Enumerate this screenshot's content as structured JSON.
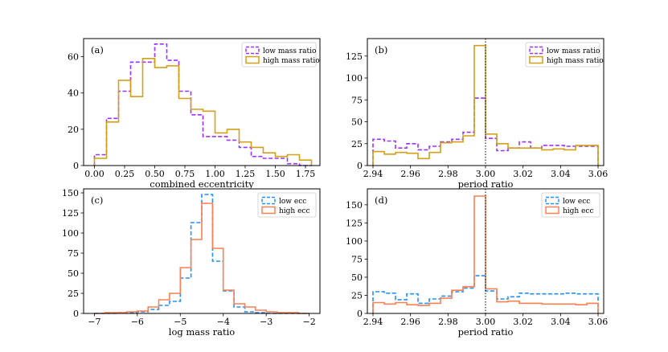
{
  "chart_data": [
    {
      "type": "histogram",
      "panel_label": "(a)",
      "xlabel": "combined eccentricity",
      "ylabel": "",
      "xlim": [
        -0.09,
        1.87
      ],
      "ylim": [
        0,
        70
      ],
      "xticks": [
        0.0,
        0.25,
        0.5,
        0.75,
        1.0,
        1.25,
        1.5,
        1.75
      ],
      "xtick_labels": [
        "0.00",
        "0.25",
        "0.50",
        "0.75",
        "1.00",
        "1.25",
        "1.50",
        "1.75"
      ],
      "yticks": [
        0,
        20,
        40,
        60
      ],
      "ytick_labels": [
        "0",
        "20",
        "40",
        "60"
      ],
      "legend_position": "top-right",
      "bin_edges": [
        0.0,
        0.1,
        0.2,
        0.3,
        0.4,
        0.5,
        0.6,
        0.7,
        0.8,
        0.9,
        1.0,
        1.1,
        1.2,
        1.3,
        1.4,
        1.5,
        1.6,
        1.7,
        1.8
      ],
      "vline": null,
      "series": [
        {
          "name": "low mass ratio",
          "color": "#9b30ff",
          "dashed": true,
          "values": [
            6,
            26,
            41,
            57,
            57,
            67,
            58,
            41,
            28,
            16,
            16,
            14,
            10,
            5,
            4,
            4,
            1,
            0
          ]
        },
        {
          "name": "high mass ratio",
          "color": "#d4a017",
          "dashed": false,
          "values": [
            4,
            24,
            47,
            38,
            59,
            54,
            55,
            37,
            31,
            30,
            18,
            20,
            13,
            10,
            7,
            5,
            6,
            3
          ]
        }
      ]
    },
    {
      "type": "histogram",
      "panel_label": "(b)",
      "xlabel": "period ratio",
      "ylabel": "",
      "xlim": [
        2.937,
        3.063
      ],
      "ylim": [
        0,
        145
      ],
      "xticks": [
        2.94,
        2.96,
        2.98,
        3.0,
        3.02,
        3.04,
        3.06
      ],
      "xtick_labels": [
        "2.94",
        "2.96",
        "2.98",
        "3.00",
        "3.02",
        "3.04",
        "3.06"
      ],
      "yticks": [
        0,
        25,
        50,
        75,
        100,
        125
      ],
      "ytick_labels": [
        "0",
        "25",
        "50",
        "75",
        "100",
        "125"
      ],
      "legend_position": "top-right",
      "bin_edges": [
        2.94,
        2.946,
        2.952,
        2.958,
        2.964,
        2.97,
        2.976,
        2.982,
        2.988,
        2.994,
        3.0,
        3.006,
        3.012,
        3.018,
        3.024,
        3.03,
        3.036,
        3.042,
        3.048,
        3.054,
        3.06
      ],
      "vline": 3.0,
      "series": [
        {
          "name": "low mass ratio",
          "color": "#9b30ff",
          "dashed": true,
          "values": [
            30,
            28,
            20,
            25,
            18,
            22,
            27,
            30,
            38,
            77,
            31,
            17,
            20,
            27,
            20,
            23,
            23,
            22,
            22,
            22
          ]
        },
        {
          "name": "high mass ratio",
          "color": "#d4a017",
          "dashed": false,
          "values": [
            16,
            13,
            15,
            14,
            8,
            15,
            26,
            27,
            34,
            137,
            36,
            25,
            20,
            20,
            20,
            18,
            19,
            18,
            23,
            23
          ]
        }
      ]
    },
    {
      "type": "histogram",
      "panel_label": "(c)",
      "xlabel": "log mass ratio",
      "ylabel": "",
      "xlim": [
        -7.25,
        -1.75
      ],
      "ylim": [
        0,
        155
      ],
      "xticks": [
        -7,
        -6,
        -5,
        -4,
        -3,
        -2
      ],
      "xtick_labels": [
        "−7",
        "−6",
        "−5",
        "−4",
        "−3",
        "−2"
      ],
      "yticks": [
        0,
        25,
        50,
        75,
        100,
        125,
        150
      ],
      "ytick_labels": [
        "0",
        "25",
        "50",
        "75",
        "100",
        "125",
        "150"
      ],
      "legend_position": "top-right",
      "bin_edges": [
        -7.0,
        -6.75,
        -6.5,
        -6.25,
        -6.0,
        -5.75,
        -5.5,
        -5.25,
        -5.0,
        -4.75,
        -4.5,
        -4.25,
        -4.0,
        -3.75,
        -3.5,
        -3.25,
        -3.0,
        -2.75,
        -2.5,
        -2.25,
        -2.0
      ],
      "vline": null,
      "series": [
        {
          "name": "low ecc",
          "color": "#1e90ff",
          "dashed": true,
          "values": [
            0,
            0,
            1,
            1,
            2,
            5,
            10,
            15,
            44,
            113,
            148,
            65,
            28,
            8,
            2,
            1,
            0,
            0,
            0,
            0
          ]
        },
        {
          "name": "high ecc",
          "color": "#ff7f50",
          "dashed": false,
          "values": [
            0,
            1,
            1,
            2,
            3,
            8,
            17,
            25,
            57,
            92,
            137,
            81,
            29,
            12,
            8,
            4,
            2,
            1,
            1,
            0
          ]
        }
      ]
    },
    {
      "type": "histogram",
      "panel_label": "(d)",
      "xlabel": "period ratio",
      "ylabel": "",
      "xlim": [
        2.937,
        3.063
      ],
      "ylim": [
        0,
        172
      ],
      "xticks": [
        2.94,
        2.96,
        2.98,
        3.0,
        3.02,
        3.04,
        3.06
      ],
      "xtick_labels": [
        "2.94",
        "2.96",
        "2.98",
        "3.00",
        "3.02",
        "3.04",
        "3.06"
      ],
      "yticks": [
        0,
        25,
        50,
        75,
        100,
        125,
        150
      ],
      "ytick_labels": [
        "0",
        "25",
        "50",
        "75",
        "100",
        "125",
        "150"
      ],
      "legend_position": "top-right",
      "bin_edges": [
        2.94,
        2.946,
        2.952,
        2.958,
        2.964,
        2.97,
        2.976,
        2.982,
        2.988,
        2.994,
        3.0,
        3.006,
        3.012,
        3.018,
        3.024,
        3.03,
        3.036,
        3.042,
        3.048,
        3.054,
        3.06
      ],
      "vline": 3.0,
      "series": [
        {
          "name": "low ecc",
          "color": "#1e90ff",
          "dashed": true,
          "values": [
            30,
            28,
            19,
            27,
            14,
            20,
            24,
            30,
            35,
            52,
            31,
            20,
            23,
            28,
            27,
            27,
            27,
            28,
            27,
            27
          ]
        },
        {
          "name": "high ecc",
          "color": "#ff7f50",
          "dashed": false,
          "values": [
            15,
            13,
            15,
            12,
            11,
            14,
            21,
            32,
            37,
            162,
            34,
            16,
            17,
            14,
            14,
            13,
            13,
            13,
            12,
            14
          ]
        }
      ]
    }
  ]
}
